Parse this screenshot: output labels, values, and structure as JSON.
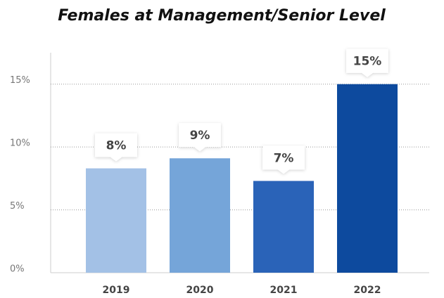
{
  "chart_data": {
    "type": "bar",
    "title": "Females at Management/Senior Level",
    "categories": [
      "2019",
      "2020",
      "2021",
      "2022"
    ],
    "values": [
      8.3,
      9.1,
      7.3,
      15
    ],
    "value_labels": [
      "8%",
      "9%",
      "7%",
      "15%"
    ],
    "colors": [
      "#a3c1e6",
      "#75a5d9",
      "#2a63b8",
      "#0d4a9e"
    ],
    "ylim": [
      0,
      17.5
    ],
    "yticks": [
      {
        "value": 0,
        "label": "0%"
      },
      {
        "value": 5,
        "label": "5%"
      },
      {
        "value": 10,
        "label": "10%"
      },
      {
        "value": 15,
        "label": "15%"
      }
    ],
    "grid": true
  }
}
